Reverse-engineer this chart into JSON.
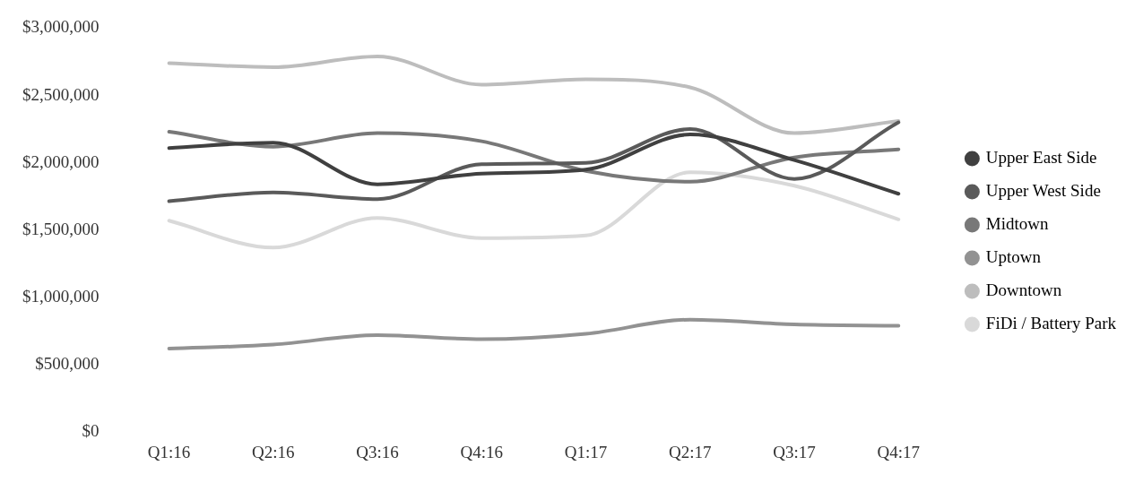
{
  "chart_data": {
    "type": "line",
    "categories": [
      "Q1:16",
      "Q2:16",
      "Q3:16",
      "Q4:16",
      "Q1:17",
      "Q2:17",
      "Q3:17",
      "Q4:17"
    ],
    "series": [
      {
        "name": "Upper East Side",
        "color": "#404040",
        "values": [
          2110000,
          2150000,
          1840000,
          1920000,
          1950000,
          2210000,
          2020000,
          1770000
        ]
      },
      {
        "name": "Upper West Side",
        "color": "#5a5a5a",
        "values": [
          1715000,
          1780000,
          1730000,
          1990000,
          2000000,
          2250000,
          1880000,
          2300000
        ]
      },
      {
        "name": "Midtown",
        "color": "#787878",
        "values": [
          2230000,
          2120000,
          2220000,
          2160000,
          1940000,
          1860000,
          2040000,
          2100000
        ]
      },
      {
        "name": "Uptown",
        "color": "#929292",
        "values": [
          620000,
          650000,
          720000,
          690000,
          730000,
          835000,
          800000,
          790000
        ]
      },
      {
        "name": "Downtown",
        "color": "#bdbdbd",
        "values": [
          2740000,
          2710000,
          2790000,
          2580000,
          2620000,
          2560000,
          2220000,
          2310000
        ]
      },
      {
        "name": "FiDi / Battery Park",
        "color": "#d9d9d9",
        "values": [
          1570000,
          1370000,
          1590000,
          1440000,
          1460000,
          1930000,
          1830000,
          1580000
        ]
      }
    ],
    "ylim": [
      0,
      3000000
    ],
    "yticks": [
      {
        "value": 0,
        "label": "$0"
      },
      {
        "value": 500000,
        "label": "$500,000"
      },
      {
        "value": 1000000,
        "label": "$1,000,000"
      },
      {
        "value": 1500000,
        "label": "$1,500,000"
      },
      {
        "value": 2000000,
        "label": "$2,000,000"
      },
      {
        "value": 2500000,
        "label": "$2,500,000"
      },
      {
        "value": 3000000,
        "label": "$3,000,000"
      }
    ],
    "grid": false,
    "legend": "right",
    "marker": "none",
    "line_style": "solid"
  }
}
